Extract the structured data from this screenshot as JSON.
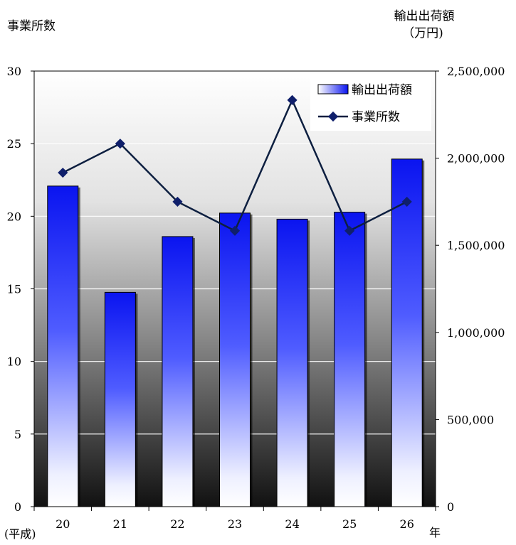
{
  "chart_data": {
    "type": "bar",
    "categories": [
      "20",
      "21",
      "22",
      "23",
      "24",
      "25",
      "26"
    ],
    "series": [
      {
        "name": "輸出出荷額",
        "type": "bar",
        "axis": "right",
        "values": [
          1840000,
          1230000,
          1550000,
          1685000,
          1650000,
          1690000,
          1995000
        ]
      },
      {
        "name": "事業所数",
        "type": "line",
        "axis": "left",
        "values": [
          23,
          25,
          21,
          19,
          28,
          19,
          21
        ]
      }
    ],
    "left_axis": {
      "title": "事業所数",
      "ylim": [
        0,
        30
      ],
      "ticks": [
        0,
        5,
        10,
        15,
        20,
        25,
        30
      ],
      "tick_labels": [
        "0",
        "5",
        "10",
        "15",
        "20",
        "25",
        "30"
      ]
    },
    "right_axis": {
      "title_line1": "輸出出荷額",
      "title_line2": "（万円)",
      "ylim": [
        0,
        2500000
      ],
      "ticks": [
        0,
        500000,
        1000000,
        1500000,
        2000000,
        2500000
      ],
      "tick_labels": [
        "0",
        "500,000",
        "1,000,000",
        "1,500,000",
        "2,000,000",
        "2,500,000"
      ]
    },
    "x_axis": {
      "prefix_label": "(平成)",
      "suffix_label": "年"
    },
    "legend": {
      "position": "top-right",
      "entries": [
        "輸出出荷額",
        "事業所数"
      ]
    },
    "grid": true,
    "colors": {
      "bar_top": "#0a14f0",
      "bar_bottom": "#ffffff",
      "line": "#0d1f40",
      "marker": "#0f1f6b",
      "plot_bg_top": "#ffffff",
      "plot_bg_bottom": "#111111",
      "grid": "#ffffff"
    }
  }
}
